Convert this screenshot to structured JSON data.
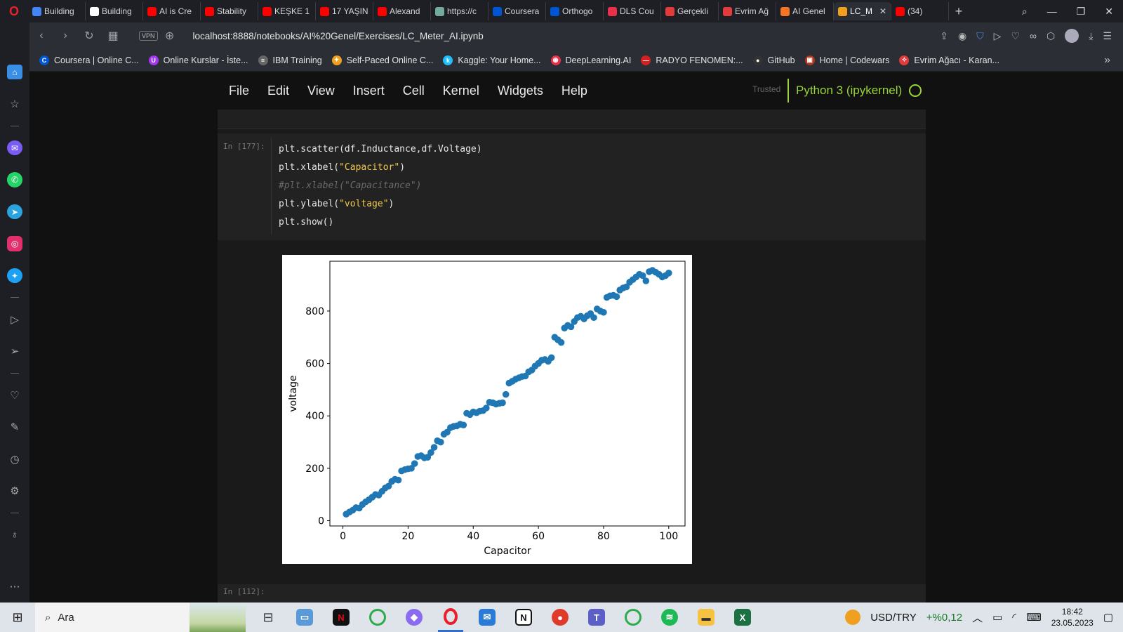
{
  "browser": {
    "tabs": [
      {
        "label": "Building",
        "icon": "google-icon",
        "color": "#4285f4"
      },
      {
        "label": "Building",
        "icon": "github-icon",
        "color": "#ffffff"
      },
      {
        "label": "AI is Cre",
        "icon": "youtube-icon",
        "color": "#ff0000"
      },
      {
        "label": "Stability",
        "icon": "youtube-icon",
        "color": "#ff0000"
      },
      {
        "label": "KEŞKE 1",
        "icon": "youtube-icon",
        "color": "#ff0000"
      },
      {
        "label": "17 YAŞIN",
        "icon": "youtube-icon",
        "color": "#ff0000"
      },
      {
        "label": "Alexand",
        "icon": "youtube-icon",
        "color": "#ff0000"
      },
      {
        "label": "https://c",
        "icon": "chatgpt-icon",
        "color": "#74aa9c"
      },
      {
        "label": "Coursera",
        "icon": "coursera-icon",
        "color": "#0056d2"
      },
      {
        "label": "Orthogo",
        "icon": "coursera-icon",
        "color": "#0056d2"
      },
      {
        "label": "DLS Cou",
        "icon": "deeplearning-icon",
        "color": "#e8304a"
      },
      {
        "label": "Gerçekli",
        "icon": "evrimagaci-icon",
        "color": "#e23b3b"
      },
      {
        "label": "Evrim Ağ",
        "icon": "evrimagaci-icon",
        "color": "#e23b3b"
      },
      {
        "label": "AI Genel",
        "icon": "jupyter-icon",
        "color": "#f37626"
      },
      {
        "label": "LC_M",
        "icon": "notebook-icon",
        "color": "#f0a020",
        "active": true
      },
      {
        "label": "(34)",
        "icon": "youtube-icon",
        "color": "#ff0000"
      }
    ],
    "url": "localhost:8888/notebooks/AI%20Genel/Exercises/LC_Meter_AI.ipynb",
    "vpn_label": "VPN",
    "bookmarks": [
      {
        "label": "Coursera | Online C...",
        "icon": "coursera-icon",
        "color": "#0056d2",
        "glyph": "C"
      },
      {
        "label": "Online Kurslar - İste...",
        "icon": "udemy-icon",
        "color": "#a435f0",
        "glyph": "U"
      },
      {
        "label": "IBM Training",
        "icon": "ibm-icon",
        "color": "#666666",
        "glyph": "≡"
      },
      {
        "label": "Self-Paced Online C...",
        "icon": "edx-icon",
        "color": "#f0a020",
        "glyph": "✦"
      },
      {
        "label": "Kaggle: Your Home...",
        "icon": "kaggle-icon",
        "color": "#20beff",
        "glyph": "k"
      },
      {
        "label": "DeepLearning.AI",
        "icon": "deeplearning-icon",
        "color": "#e8304a",
        "glyph": "◉"
      },
      {
        "label": "RADYO FENOMEN:...",
        "icon": "radio-icon",
        "color": "#d42020",
        "glyph": "—"
      },
      {
        "label": "GitHub",
        "icon": "github-icon",
        "color": "#333333",
        "glyph": "●"
      },
      {
        "label": "Home | Codewars",
        "icon": "codewars-icon",
        "color": "#b1361e",
        "glyph": "▣"
      },
      {
        "label": "Evrim Ağacı - Karan...",
        "icon": "evrimagaci-icon",
        "color": "#e23b3b",
        "glyph": "✧"
      }
    ]
  },
  "jupyter": {
    "menu": [
      "File",
      "Edit",
      "View",
      "Insert",
      "Cell",
      "Kernel",
      "Widgets",
      "Help"
    ],
    "trusted": "Trusted",
    "kernel": "Python 3 (ipykernel)",
    "cell_prompt": "In [177]:",
    "code_lines": [
      {
        "pre": "plt.scatter(df.Inductance,df.Voltage)",
        "str": "",
        "post": "",
        "comment": false
      },
      {
        "pre": "plt.xlabel(",
        "str": "\"Capacitor\"",
        "post": ")",
        "comment": false
      },
      {
        "pre": "#plt.xlabel(\"Capacitance\")",
        "str": "",
        "post": "",
        "comment": true
      },
      {
        "pre": "plt.ylabel(",
        "str": "\"voltage\"",
        "post": ")",
        "comment": false
      },
      {
        "pre": "plt.show()",
        "str": "",
        "post": "",
        "comment": false
      }
    ],
    "next_prompt": "In [112]:"
  },
  "chart_data": {
    "type": "scatter",
    "title": "",
    "xlabel": "Capacitor",
    "ylabel": "voltage",
    "xlim": [
      -4,
      105
    ],
    "ylim": [
      -20,
      990
    ],
    "xticks": [
      0,
      20,
      40,
      60,
      80,
      100
    ],
    "yticks": [
      0,
      200,
      400,
      600,
      800
    ],
    "color": "#1f77b4",
    "x": [
      1,
      2,
      3,
      4,
      5,
      6,
      7,
      8,
      9,
      10,
      11,
      12,
      13,
      14,
      15,
      16,
      17,
      18,
      19,
      20,
      21,
      22,
      23,
      24,
      25,
      26,
      27,
      28,
      29,
      30,
      31,
      32,
      33,
      34,
      35,
      36,
      37,
      38,
      39,
      40,
      41,
      42,
      43,
      44,
      45,
      46,
      47,
      48,
      49,
      50,
      51,
      52,
      53,
      54,
      55,
      56,
      57,
      58,
      59,
      60,
      61,
      62,
      63,
      64,
      65,
      66,
      67,
      68,
      69,
      70,
      71,
      72,
      73,
      74,
      75,
      76,
      77,
      78,
      79,
      80,
      81,
      82,
      83,
      84,
      85,
      86,
      87,
      88,
      89,
      90,
      91,
      92,
      93,
      94,
      95,
      96,
      97,
      98,
      99,
      100
    ],
    "y": [
      25,
      33,
      40,
      50,
      48,
      62,
      72,
      80,
      90,
      100,
      98,
      112,
      125,
      132,
      150,
      158,
      155,
      190,
      195,
      198,
      200,
      218,
      245,
      248,
      240,
      242,
      260,
      280,
      305,
      300,
      330,
      338,
      355,
      360,
      362,
      368,
      365,
      410,
      405,
      415,
      412,
      418,
      420,
      430,
      452,
      450,
      445,
      448,
      450,
      482,
      525,
      532,
      540,
      545,
      550,
      552,
      568,
      575,
      590,
      600,
      612,
      615,
      608,
      622,
      700,
      690,
      680,
      735,
      745,
      740,
      760,
      775,
      780,
      770,
      782,
      790,
      775,
      808,
      800,
      795,
      852,
      858,
      860,
      855,
      880,
      888,
      892,
      910,
      920,
      930,
      940,
      935,
      915,
      950,
      955,
      948,
      940,
      930,
      935,
      945
    ]
  }
}
